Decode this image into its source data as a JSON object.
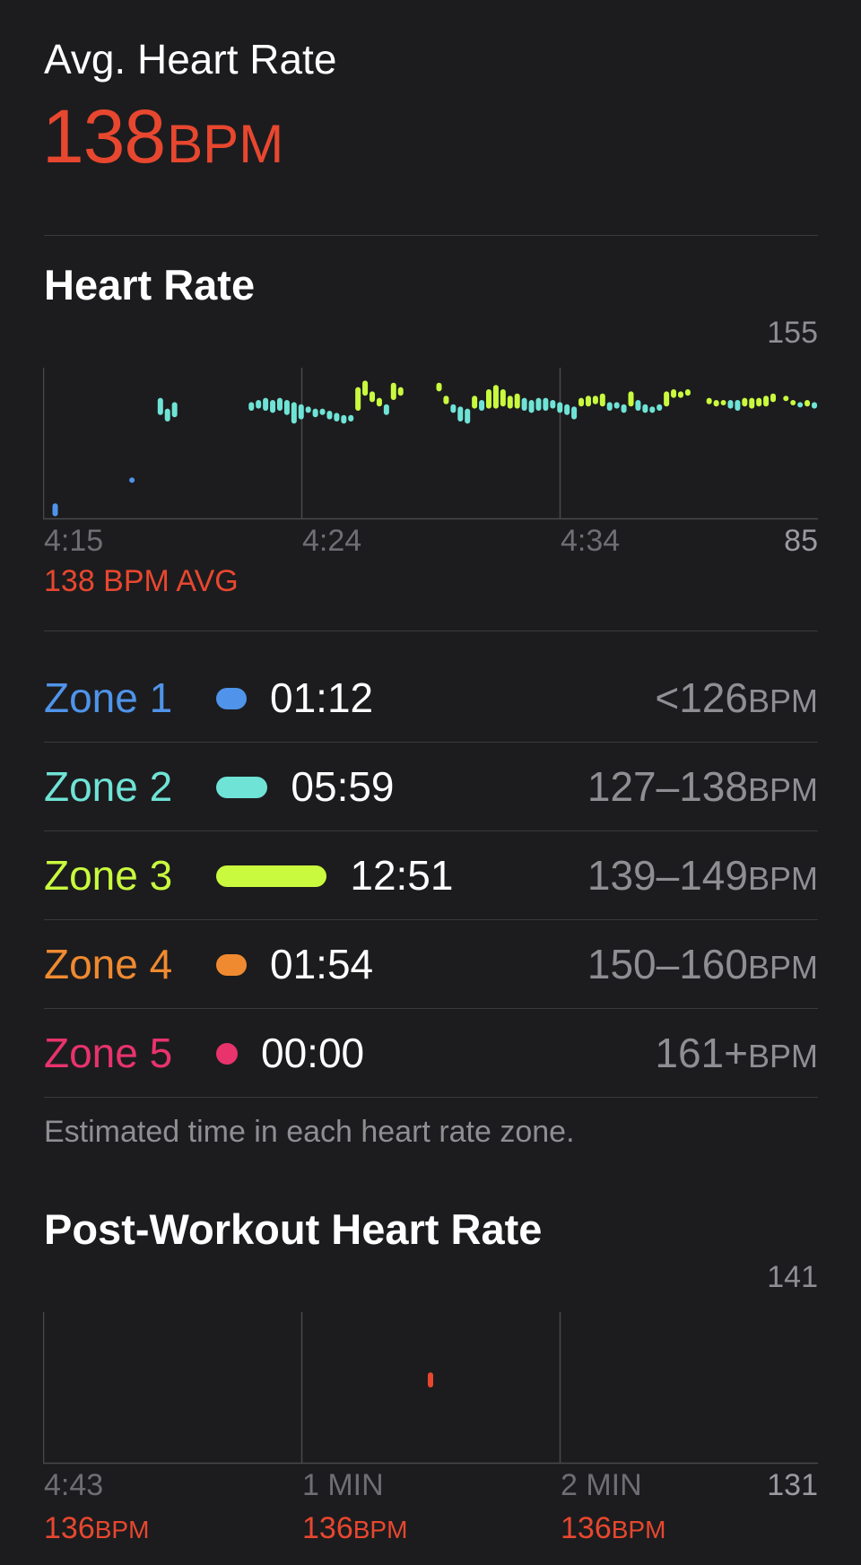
{
  "summary": {
    "label": "Avg. Heart Rate",
    "value": "138",
    "unit": "BPM",
    "accent": "#e8472f"
  },
  "heart_rate_section": {
    "title": "Heart Rate",
    "avg_label": "138 BPM AVG",
    "time_ticks": [
      "4:15",
      "4:24",
      "4:34"
    ],
    "y_max_label": "155",
    "y_min_label": "85"
  },
  "zones": [
    {
      "name": "Zone 1",
      "time": "01:12",
      "range": "<126",
      "unit": "BPM",
      "color": "#4f94ea",
      "minutes": 1.2
    },
    {
      "name": "Zone 2",
      "time": "05:59",
      "range": "127–138",
      "unit": "BPM",
      "color": "#6fe3d6",
      "minutes": 5.98
    },
    {
      "name": "Zone 3",
      "time": "12:51",
      "range": "139–149",
      "unit": "BPM",
      "color": "#c9fa3e",
      "minutes": 12.85
    },
    {
      "name": "Zone 4",
      "time": "01:54",
      "range": "150–160",
      "unit": "BPM",
      "color": "#f08a30",
      "minutes": 1.9
    },
    {
      "name": "Zone 5",
      "time": "00:00",
      "range": "161+",
      "unit": "BPM",
      "color": "#e8336d",
      "minutes": 0
    }
  ],
  "zones_note": "Estimated time in each heart rate zone.",
  "post_workout": {
    "title": "Post-Workout Heart Rate",
    "y_max_label": "141",
    "y_min_label": "131",
    "ticks": [
      {
        "time": "4:43",
        "value": "136",
        "unit": "BPM"
      },
      {
        "time": "1 MIN",
        "value": "136",
        "unit": "BPM"
      },
      {
        "time": "2 MIN",
        "value": "136",
        "unit": "BPM"
      }
    ]
  },
  "chart_data": [
    {
      "type": "scatter",
      "title": "Heart Rate",
      "xlabel": "",
      "ylabel": "",
      "x_unit": "minutes since 4:15",
      "ylim": [
        85,
        155
      ],
      "xlim": [
        0,
        27
      ],
      "x_ticks": [
        "4:15",
        "4:24",
        "4:34"
      ],
      "series": [
        {
          "values": [
            [
              0.3,
              86,
              92
            ],
            [
              3.0,
              103,
              104
            ],
            [
              4.0,
              133,
              141
            ],
            [
              4.25,
              130,
              136
            ],
            [
              4.5,
              132,
              139
            ],
            [
              7.2,
              135,
              139
            ],
            [
              7.45,
              136,
              140
            ],
            [
              7.7,
              135,
              141
            ],
            [
              7.95,
              134,
              140
            ],
            [
              8.2,
              135,
              141
            ],
            [
              8.45,
              133,
              140
            ],
            [
              8.7,
              129,
              139
            ],
            [
              8.95,
              131,
              138
            ],
            [
              9.2,
              134,
              137
            ],
            [
              9.45,
              132,
              136
            ],
            [
              9.7,
              133,
              136
            ],
            [
              9.95,
              131,
              135
            ],
            [
              10.2,
              130,
              134
            ],
            [
              10.45,
              129,
              133
            ],
            [
              10.7,
              130,
              133
            ],
            [
              10.95,
              135,
              146
            ],
            [
              11.2,
              142,
              149
            ],
            [
              11.45,
              139,
              144
            ],
            [
              11.7,
              137,
              141
            ],
            [
              11.95,
              133,
              138
            ],
            [
              12.2,
              140,
              148
            ],
            [
              12.45,
              142,
              146
            ],
            [
              13.8,
              144,
              148
            ],
            [
              14.05,
              138,
              142
            ],
            [
              14.3,
              134,
              138
            ],
            [
              14.55,
              130,
              137
            ],
            [
              14.8,
              129,
              136
            ],
            [
              15.05,
              136,
              142
            ],
            [
              15.3,
              135,
              140
            ],
            [
              15.55,
              136,
              145
            ],
            [
              15.8,
              136,
              147
            ],
            [
              16.05,
              137,
              145
            ],
            [
              16.3,
              136,
              142
            ],
            [
              16.55,
              136,
              143
            ],
            [
              16.8,
              135,
              141
            ],
            [
              17.05,
              134,
              140
            ],
            [
              17.3,
              135,
              141
            ],
            [
              17.55,
              135,
              141
            ],
            [
              17.8,
              136,
              140
            ],
            [
              18.05,
              134,
              139
            ],
            [
              18.3,
              133,
              138
            ],
            [
              18.55,
              131,
              137
            ],
            [
              18.8,
              137,
              141
            ],
            [
              19.05,
              137,
              142
            ],
            [
              19.3,
              138,
              142
            ],
            [
              19.55,
              137,
              143
            ],
            [
              19.8,
              135,
              139
            ],
            [
              20.05,
              136,
              139
            ],
            [
              20.3,
              134,
              138
            ],
            [
              20.55,
              137,
              144
            ],
            [
              20.8,
              135,
              140
            ],
            [
              21.05,
              134,
              138
            ],
            [
              21.3,
              134,
              137
            ],
            [
              21.55,
              135,
              138
            ],
            [
              21.8,
              137,
              144
            ],
            [
              22.05,
              141,
              145
            ],
            [
              22.3,
              141,
              144
            ],
            [
              22.55,
              142,
              145
            ],
            [
              23.3,
              138,
              141
            ],
            [
              23.55,
              137,
              140
            ],
            [
              23.8,
              138,
              140
            ],
            [
              24.05,
              136,
              140
            ],
            [
              24.3,
              135,
              140
            ],
            [
              24.55,
              137,
              141
            ],
            [
              24.8,
              136,
              141
            ],
            [
              25.05,
              137,
              141
            ],
            [
              25.3,
              137,
              142
            ],
            [
              25.55,
              139,
              143
            ],
            [
              26.0,
              140,
              142
            ],
            [
              26.25,
              138,
              140
            ],
            [
              26.5,
              137,
              139
            ],
            [
              26.75,
              137,
              140
            ],
            [
              27.0,
              136,
              139
            ]
          ]
        }
      ]
    },
    {
      "type": "scatter",
      "title": "Post-Workout Heart Rate",
      "xlabel": "",
      "ylabel": "",
      "x_unit": "minutes after workout end (4:43)",
      "ylim": [
        131,
        141
      ],
      "xlim": [
        0,
        3
      ],
      "x_ticks": [
        "4:43",
        "1 MIN",
        "2 MIN"
      ],
      "series": [
        {
          "values": [
            [
              1.5,
              136,
              137
            ]
          ]
        }
      ]
    }
  ]
}
